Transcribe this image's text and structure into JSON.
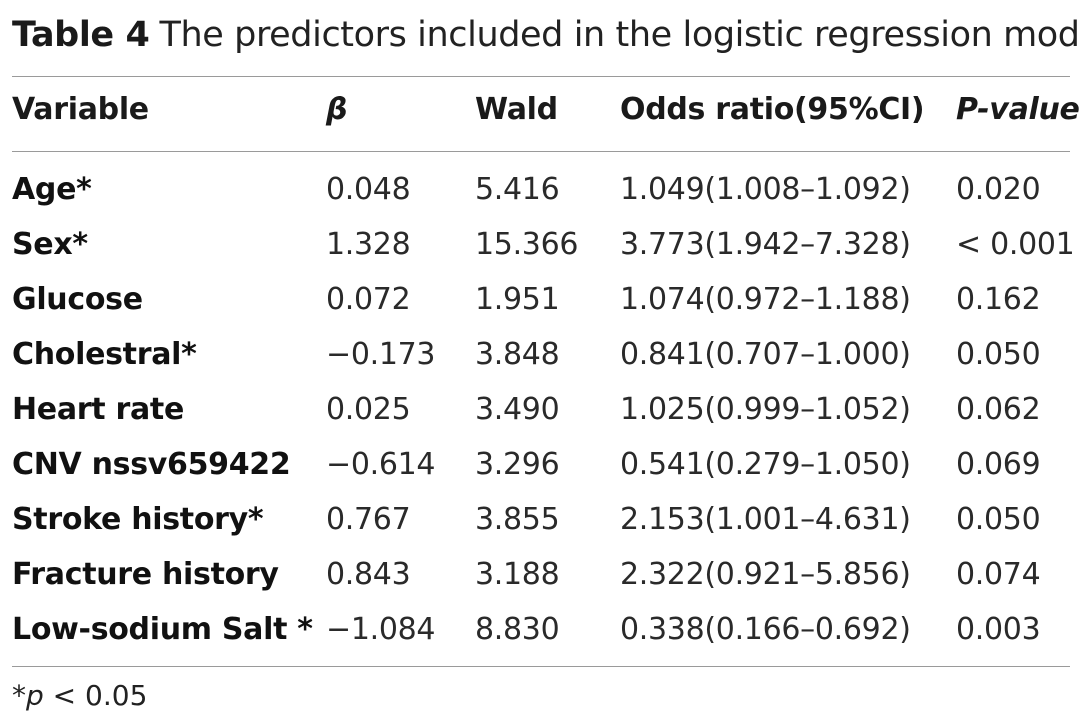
{
  "caption": {
    "label": "Table 4",
    "text": "The predictors included in the logistic regression model"
  },
  "table": {
    "columns": [
      "Variable",
      "β",
      "Wald",
      "Odds ratio(95%CI)",
      "P-value"
    ],
    "rows": [
      {
        "variable": "Age*",
        "beta": "0.048",
        "wald": "5.416",
        "or": "1.049(1.008–1.092)",
        "p": "0.020"
      },
      {
        "variable": "Sex*",
        "beta": "1.328",
        "wald": "15.366",
        "or": "3.773(1.942–7.328)",
        "p": "< 0.001"
      },
      {
        "variable": "Glucose",
        "beta": "0.072",
        "wald": "1.951",
        "or": "1.074(0.972–1.188)",
        "p": "0.162"
      },
      {
        "variable": "Cholestral*",
        "beta": "−0.173",
        "wald": "3.848",
        "or": "0.841(0.707–1.000)",
        "p": "0.050"
      },
      {
        "variable": "Heart rate",
        "beta": "0.025",
        "wald": "3.490",
        "or": "1.025(0.999–1.052)",
        "p": "0.062"
      },
      {
        "variable": "CNV nssv659422",
        "beta": "−0.614",
        "wald": "3.296",
        "or": "0.541(0.279–1.050)",
        "p": "0.069"
      },
      {
        "variable": "Stroke history*",
        "beta": "0.767",
        "wald": "3.855",
        "or": "2.153(1.001–4.631)",
        "p": "0.050"
      },
      {
        "variable": "Fracture history",
        "beta": "0.843",
        "wald": "3.188",
        "or": "2.322(0.921–5.856)",
        "p": "0.074"
      },
      {
        "variable": "Low-sodium Salt *",
        "beta": "−1.084",
        "wald": "8.830",
        "or": "0.338(0.166–0.692)",
        "p": "0.003"
      }
    ]
  },
  "footnote": {
    "star": "*",
    "var": "p",
    "text": " < 0.05"
  }
}
